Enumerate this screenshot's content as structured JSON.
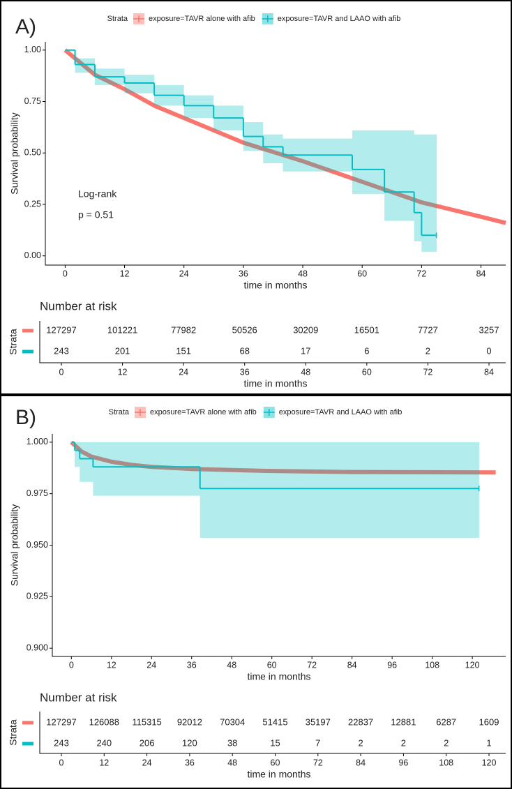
{
  "chart_data": [
    {
      "type": "line",
      "panel_label": "A)",
      "legend_title": "Strata",
      "xlabel": "time in months",
      "ylabel": "Survival probability",
      "annotations": [
        "Log-rank",
        "p = 0.51"
      ],
      "xlim": [
        -4,
        89
      ],
      "ylim": [
        -0.045,
        1.04
      ],
      "xticks": [
        0,
        12,
        24,
        36,
        48,
        60,
        72,
        84
      ],
      "yticks": [
        {
          "value": 0,
          "label": "0.00"
        },
        {
          "value": 0.25,
          "label": "0.25"
        },
        {
          "value": 0.5,
          "label": "0.50"
        },
        {
          "value": 0.75,
          "label": "0.75"
        },
        {
          "value": 1,
          "label": "1.00"
        }
      ],
      "series": [
        {
          "name": "exposure=TAVR alone with afib",
          "color": "#f8766d",
          "step": false,
          "x": [
            0,
            6,
            12,
            18,
            24,
            36,
            48,
            60,
            72,
            84,
            89
          ],
          "values": [
            1.0,
            0.88,
            0.81,
            0.73,
            0.67,
            0.55,
            0.46,
            0.36,
            0.26,
            0.19,
            0.16
          ]
        },
        {
          "name": "exposure=TAVR and  LAAO with afib",
          "color": "#00bfc4",
          "step": true,
          "x": [
            0,
            2,
            6,
            12,
            18,
            24,
            30,
            36,
            40,
            44,
            58,
            64.5,
            70.5,
            72,
            75
          ],
          "values": [
            1.0,
            0.93,
            0.87,
            0.84,
            0.78,
            0.73,
            0.67,
            0.58,
            0.53,
            0.49,
            0.42,
            0.31,
            0.21,
            0.1,
            0.1
          ],
          "lower": [
            1.0,
            0.89,
            0.83,
            0.79,
            0.73,
            0.67,
            0.61,
            0.51,
            0.45,
            0.41,
            0.3,
            0.17,
            0.07,
            0.02,
            0.02
          ],
          "upper": [
            1.0,
            0.96,
            0.91,
            0.88,
            0.83,
            0.78,
            0.73,
            0.65,
            0.59,
            0.57,
            0.61,
            0.61,
            0.59,
            0.59,
            0.59
          ]
        }
      ],
      "risk_table": {
        "title": "Number at risk",
        "ylabel": "Strata",
        "xlabel": "time in months",
        "xlim": [
          -4,
          89
        ],
        "x": [
          0,
          12,
          24,
          36,
          48,
          60,
          72,
          84
        ],
        "rows": [
          [
            127297,
            101221,
            77982,
            50526,
            30209,
            16501,
            7727,
            3257
          ],
          [
            243,
            201,
            151,
            68,
            17,
            6,
            2,
            0
          ]
        ]
      }
    },
    {
      "type": "line",
      "panel_label": "B)",
      "legend_title": "Strata",
      "xlabel": "time in months",
      "ylabel": "Survival probability",
      "xlim": [
        -5.7,
        130
      ],
      "ylim": [
        0.896,
        1.004
      ],
      "xticks": [
        0,
        12,
        24,
        36,
        48,
        60,
        72,
        84,
        96,
        108,
        120
      ],
      "yticks": [
        {
          "value": 0.9,
          "label": "0.900"
        },
        {
          "value": 0.925,
          "label": "0.925"
        },
        {
          "value": 0.95,
          "label": "0.950"
        },
        {
          "value": 0.975,
          "label": "0.975"
        },
        {
          "value": 1,
          "label": "1.000"
        }
      ],
      "series": [
        {
          "name": "exposure=TAVR alone with afib",
          "color": "#f8766d",
          "step": false,
          "x": [
            0,
            3,
            6,
            12,
            18,
            24,
            36,
            48,
            60,
            84,
            127
          ],
          "values": [
            1.0,
            0.9955,
            0.993,
            0.9905,
            0.989,
            0.988,
            0.987,
            0.9865,
            0.986,
            0.9855,
            0.9853
          ]
        },
        {
          "name": "exposure=TAVR and  LAAO with afib",
          "color": "#00bfc4",
          "step": true,
          "x": [
            0,
            1,
            2.5,
            6.5,
            38.5,
            122
          ],
          "values": [
            1.0,
            0.996,
            0.992,
            0.988,
            0.9775,
            0.9775
          ],
          "lower": [
            1.0,
            0.988,
            0.9807,
            0.974,
            0.9536,
            0.9536
          ],
          "upper": [
            1.0,
            1.0,
            1.0,
            1.0,
            1.0,
            1.0
          ]
        }
      ],
      "risk_table": {
        "title": "Number at risk",
        "ylabel": "Strata",
        "xlabel": "time in months",
        "xlim": [
          -5.7,
          130
        ],
        "x": [
          0,
          12,
          24,
          36,
          48,
          60,
          72,
          84,
          96,
          108,
          120
        ],
        "rows": [
          [
            127297,
            126088,
            115315,
            92012,
            70304,
            51415,
            35197,
            22837,
            12881,
            6287,
            1609
          ],
          [
            243,
            240,
            206,
            120,
            38,
            15,
            7,
            2,
            2,
            2,
            1
          ]
        ]
      }
    }
  ]
}
